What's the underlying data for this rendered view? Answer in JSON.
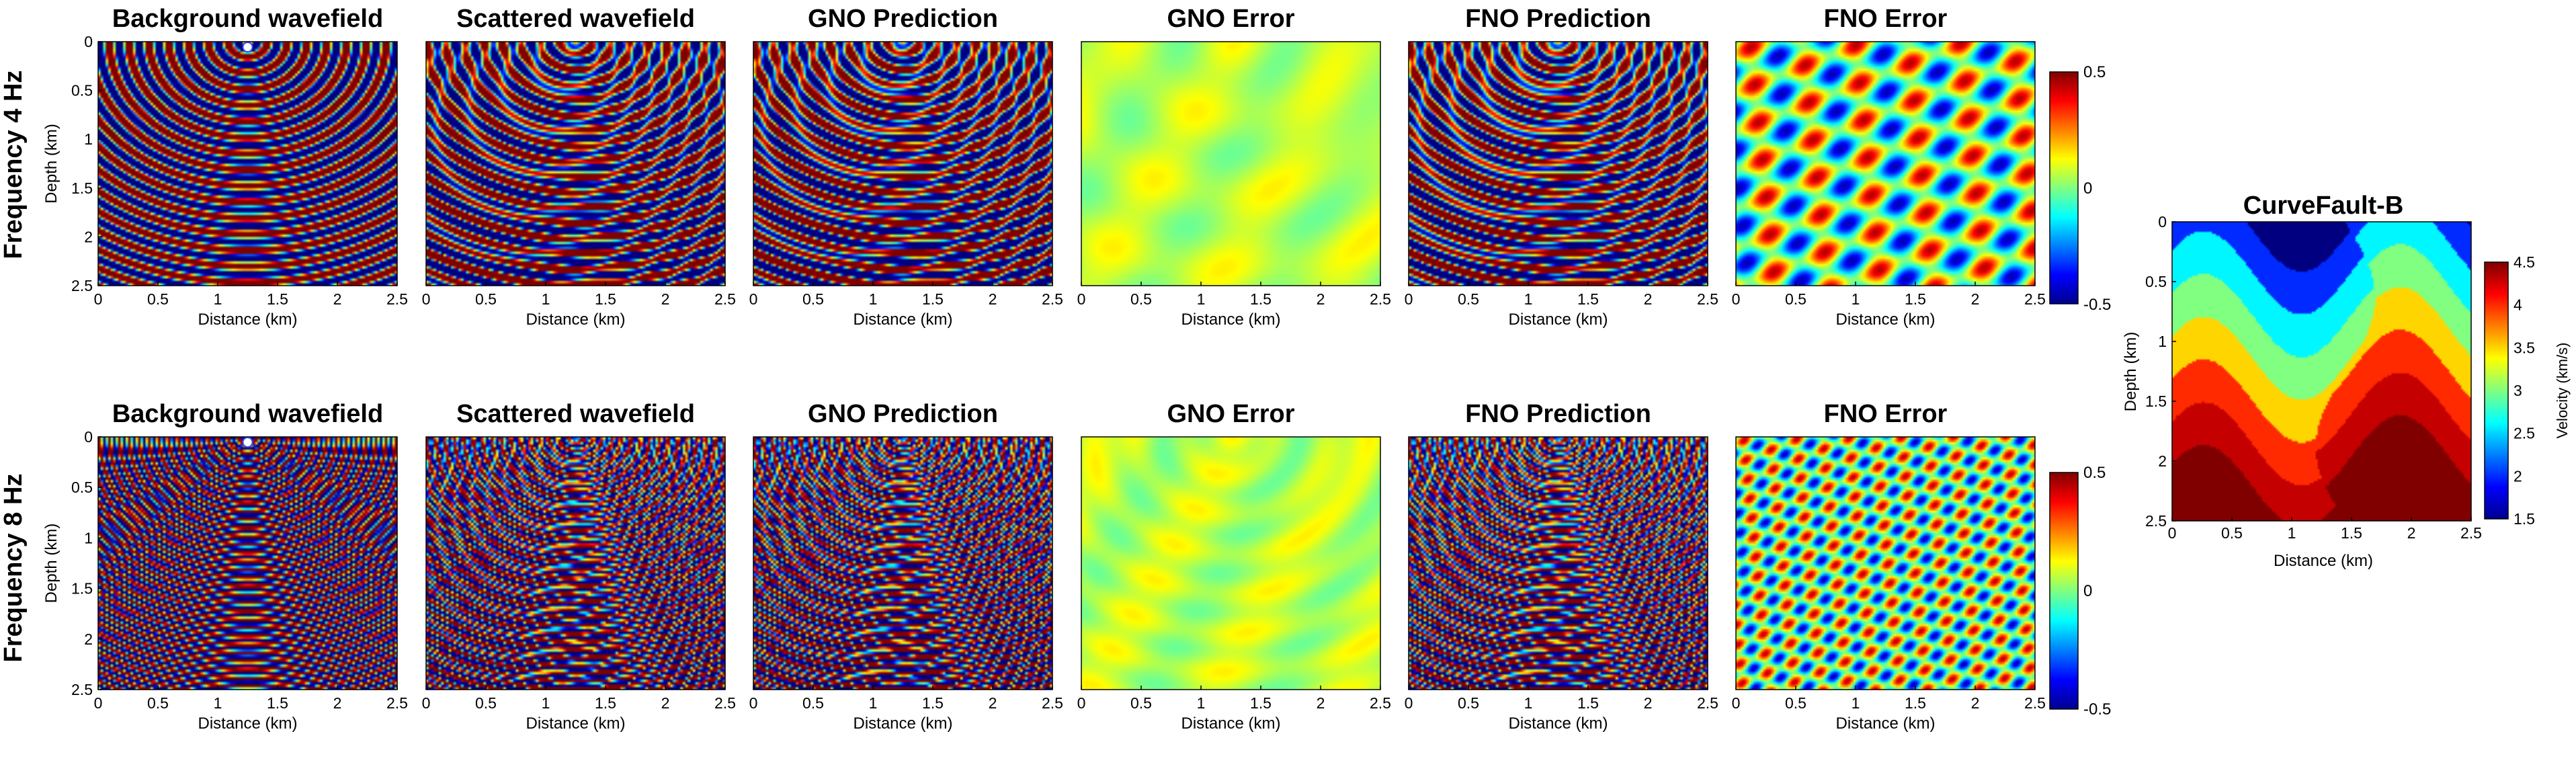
{
  "figure": {
    "row_labels": [
      "Frequency 4 Hz",
      "Frequency 8 Hz"
    ],
    "panel_titles": [
      "Background wavefield",
      "Scattered wavefield",
      "GNO Prediction",
      "GNO Error",
      "FNO Prediction",
      "FNO Error"
    ],
    "xlabel": "Distance (km)",
    "ylabel": "Depth (km)",
    "x_ticks": [
      "0",
      "0.5",
      "1",
      "1.5",
      "2",
      "2.5"
    ],
    "y_ticks": [
      "0",
      "0.5",
      "1",
      "1.5",
      "2",
      "2.5"
    ],
    "wavefield_colorbar_ticks": [
      "0.5",
      "0",
      "-0.5"
    ],
    "velocity_panel": {
      "title": "CurveFault-B",
      "xlabel": "Distance (km)",
      "ylabel": "Depth (km)",
      "colorbar_label": "Velocity (km/s)",
      "x_ticks": [
        "0",
        "0.5",
        "1",
        "1.5",
        "2",
        "2.5"
      ],
      "y_ticks": [
        "0",
        "0.5",
        "1",
        "1.5",
        "2",
        "2.5"
      ],
      "colorbar_ticks": [
        "4.5",
        "4",
        "3.5",
        "3",
        "2.5",
        "2",
        "1.5"
      ]
    }
  },
  "chart_data": [
    {
      "type": "heatmap",
      "row": "Frequency 4 Hz",
      "title": "Background wavefield",
      "xlim": [
        0,
        2.5
      ],
      "ylim": [
        0,
        2.5
      ],
      "clim": [
        -0.5,
        0.5
      ],
      "colormap": "jet",
      "source_x_km": 1.25,
      "frequency_hz": 4
    },
    {
      "type": "heatmap",
      "row": "Frequency 4 Hz",
      "title": "Scattered wavefield",
      "xlim": [
        0,
        2.5
      ],
      "ylim": [
        0,
        2.5
      ],
      "clim": [
        -0.5,
        0.5
      ],
      "colormap": "jet",
      "frequency_hz": 4
    },
    {
      "type": "heatmap",
      "row": "Frequency 4 Hz",
      "title": "GNO Prediction",
      "xlim": [
        0,
        2.5
      ],
      "ylim": [
        0,
        2.5
      ],
      "clim": [
        -0.5,
        0.5
      ],
      "colormap": "jet",
      "frequency_hz": 4
    },
    {
      "type": "heatmap",
      "row": "Frequency 4 Hz",
      "title": "GNO Error",
      "xlim": [
        0,
        2.5
      ],
      "ylim": [
        0,
        2.5
      ],
      "clim": [
        -0.5,
        0.5
      ],
      "colormap": "jet",
      "frequency_hz": 4
    },
    {
      "type": "heatmap",
      "row": "Frequency 4 Hz",
      "title": "FNO Prediction",
      "xlim": [
        0,
        2.5
      ],
      "ylim": [
        0,
        2.5
      ],
      "clim": [
        -0.5,
        0.5
      ],
      "colormap": "jet",
      "frequency_hz": 4
    },
    {
      "type": "heatmap",
      "row": "Frequency 4 Hz",
      "title": "FNO Error",
      "xlim": [
        0,
        2.5
      ],
      "ylim": [
        0,
        2.5
      ],
      "clim": [
        -0.5,
        0.5
      ],
      "colormap": "jet",
      "frequency_hz": 4
    },
    {
      "type": "heatmap",
      "row": "Frequency 8 Hz",
      "title": "Background wavefield",
      "xlim": [
        0,
        2.5
      ],
      "ylim": [
        0,
        2.5
      ],
      "clim": [
        -0.5,
        0.5
      ],
      "colormap": "jet",
      "source_x_km": 1.25,
      "frequency_hz": 8
    },
    {
      "type": "heatmap",
      "row": "Frequency 8 Hz",
      "title": "Scattered wavefield",
      "xlim": [
        0,
        2.5
      ],
      "ylim": [
        0,
        2.5
      ],
      "clim": [
        -0.5,
        0.5
      ],
      "colormap": "jet",
      "frequency_hz": 8
    },
    {
      "type": "heatmap",
      "row": "Frequency 8 Hz",
      "title": "GNO Prediction",
      "xlim": [
        0,
        2.5
      ],
      "ylim": [
        0,
        2.5
      ],
      "clim": [
        -0.5,
        0.5
      ],
      "colormap": "jet",
      "frequency_hz": 8
    },
    {
      "type": "heatmap",
      "row": "Frequency 8 Hz",
      "title": "GNO Error",
      "xlim": [
        0,
        2.5
      ],
      "ylim": [
        0,
        2.5
      ],
      "clim": [
        -0.5,
        0.5
      ],
      "colormap": "jet",
      "frequency_hz": 8
    },
    {
      "type": "heatmap",
      "row": "Frequency 8 Hz",
      "title": "FNO Prediction",
      "xlim": [
        0,
        2.5
      ],
      "ylim": [
        0,
        2.5
      ],
      "clim": [
        -0.5,
        0.5
      ],
      "colormap": "jet",
      "frequency_hz": 8
    },
    {
      "type": "heatmap",
      "row": "Frequency 8 Hz",
      "title": "FNO Error",
      "xlim": [
        0,
        2.5
      ],
      "ylim": [
        0,
        2.5
      ],
      "clim": [
        -0.5,
        0.5
      ],
      "colormap": "jet",
      "frequency_hz": 8
    },
    {
      "type": "heatmap",
      "title": "CurveFault-B",
      "xlim": [
        0,
        2.5
      ],
      "ylim": [
        0,
        2.5
      ],
      "clim": [
        1.5,
        4.5
      ],
      "colormap": "jet",
      "velocity_layers_km_s": [
        1.5,
        2.0,
        2.6,
        3.0,
        3.5,
        4.0,
        4.3,
        4.5
      ]
    }
  ]
}
